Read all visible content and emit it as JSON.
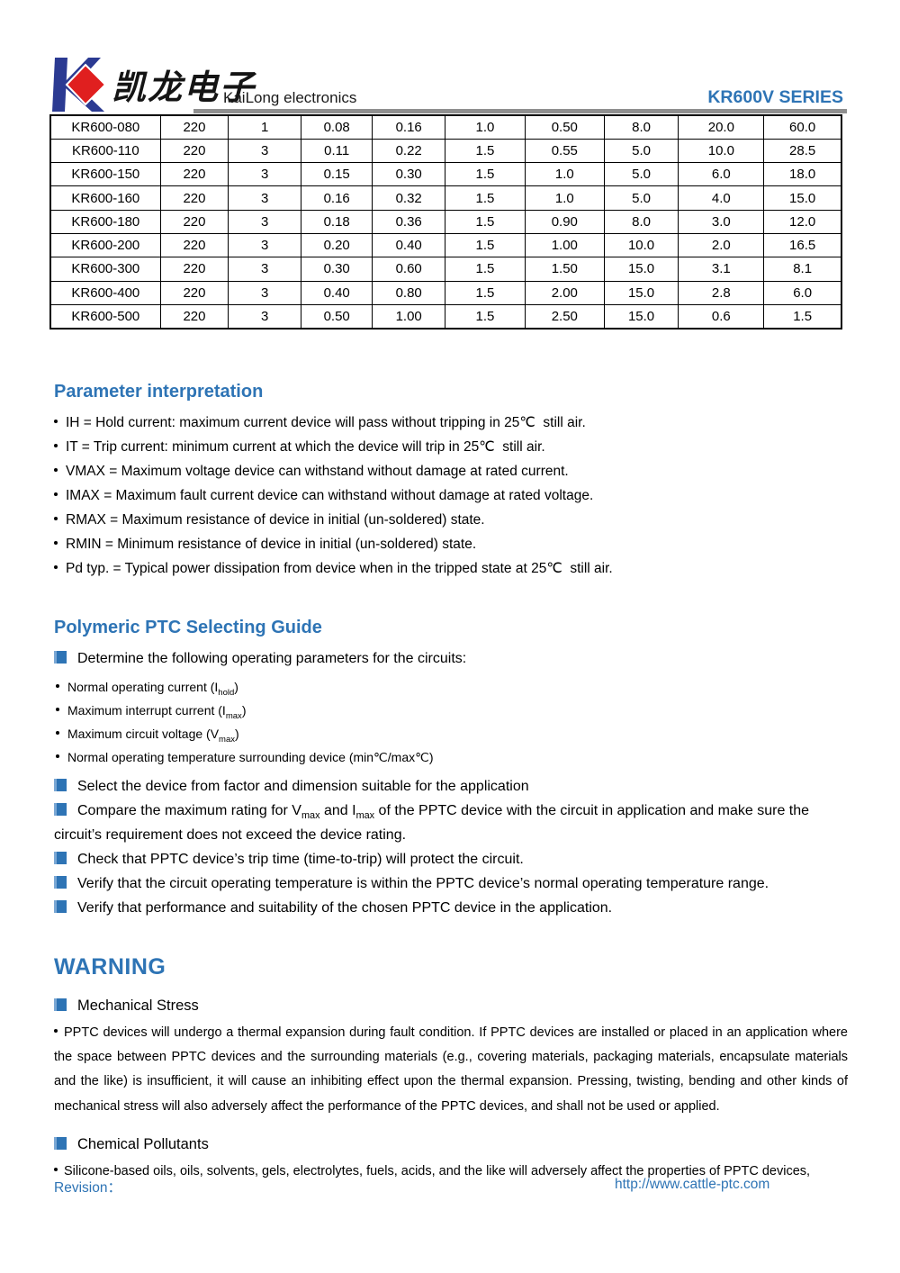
{
  "header": {
    "logo_cn": "凯龙电子",
    "company": "KaiLong electronics",
    "series": "KR600V SERIES"
  },
  "colors": {
    "accent_blue": "#2e74b5",
    "logo_blue": "#2b3a92",
    "logo_red": "#e01f1f",
    "divider_gray": "#8f8f8f"
  },
  "table": {
    "rows": [
      [
        "KR600-080",
        "220",
        "1",
        "0.08",
        "0.16",
        "1.0",
        "0.50",
        "8.0",
        "20.0",
        "60.0"
      ],
      [
        "KR600-110",
        "220",
        "3",
        "0.11",
        "0.22",
        "1.5",
        "0.55",
        "5.0",
        "10.0",
        "28.5"
      ],
      [
        "KR600-150",
        "220",
        "3",
        "0.15",
        "0.30",
        "1.5",
        "1.0",
        "5.0",
        "6.0",
        "18.0"
      ],
      [
        "KR600-160",
        "220",
        "3",
        "0.16",
        "0.32",
        "1.5",
        "1.0",
        "5.0",
        "4.0",
        "15.0"
      ],
      [
        "KR600-180",
        "220",
        "3",
        "0.18",
        "0.36",
        "1.5",
        "0.90",
        "8.0",
        "3.0",
        "12.0"
      ],
      [
        "KR600-200",
        "220",
        "3",
        "0.20",
        "0.40",
        "1.5",
        "1.00",
        "10.0",
        "2.0",
        "16.5"
      ],
      [
        "KR600-300",
        "220",
        "3",
        "0.30",
        "0.60",
        "1.5",
        "1.50",
        "15.0",
        "3.1",
        "8.1"
      ],
      [
        "KR600-400",
        "220",
        "3",
        "0.40",
        "0.80",
        "1.5",
        "2.00",
        "15.0",
        "2.8",
        "6.0"
      ],
      [
        "KR600-500",
        "220",
        "3",
        "0.50",
        "1.00",
        "1.5",
        "2.50",
        "15.0",
        "0.6",
        "1.5"
      ]
    ]
  },
  "param": {
    "heading": "Parameter interpretation",
    "items": [
      "IH = Hold current: maximum current device will pass without tripping in 25℃  still air.",
      "IT = Trip current: minimum current at which the device will trip in 25℃  still air.",
      "VMAX = Maximum voltage device can withstand without damage at rated current.",
      "IMAX = Maximum fault current device can withstand without damage at rated voltage.",
      "RMAX = Maximum resistance of device in initial (un-soldered) state.",
      "RMIN = Minimum resistance of device in initial (un-soldered) state.",
      "Pd typ. = Typical power dissipation from device when in the tripped state at 25℃  still air."
    ]
  },
  "guide": {
    "heading": "Polymeric PTC Selecting Guide",
    "intro": "Determine the following operating parameters for the circuits:",
    "sub_items": [
      "Normal operating current (I~hold~)",
      "Maximum interrupt current (I~max~)",
      "Maximum circuit voltage (V~max~)",
      "Normal operating temperature surrounding device (min℃/max℃)"
    ],
    "steps": [
      "Select the device from factor and dimension suitable for the application",
      "Compare the maximum rating for V~max~ and I~max~ of the PPTC device with the circuit in application and make sure the circuit’s requirement does not exceed the device rating.",
      "Check that PPTC device’s trip time (time-to-trip) will protect the circuit.",
      "Verify that the circuit operating temperature is within the PPTC device’s normal operating temperature range.",
      "Verify that performance and suitability of the chosen PPTC device in the application."
    ]
  },
  "warning": {
    "heading": "WARNING",
    "mechanical_title": "Mechanical Stress",
    "mechanical_text": "PPTC devices will undergo a thermal expansion during fault condition. If PPTC devices are installed or placed in an application where the space between PPTC devices and the surrounding materials (e.g., covering materials, packaging materials, encapsulate materials and the like) is insufficient, it will cause an inhibiting effect upon the thermal expansion. Pressing, twisting, bending and other kinds of mechanical stress will also adversely affect the performance of the PPTC devices, and shall not be used or applied.",
    "chemical_title": "Chemical Pollutants",
    "chemical_text": "Silicone-based oils, oils, solvents, gels, electrolytes, fuels, acids, and the like will adversely affect the properties of PPTC devices,"
  },
  "footer": {
    "revision_label": "Revision：",
    "url": "http://www.cattle-ptc.com"
  }
}
